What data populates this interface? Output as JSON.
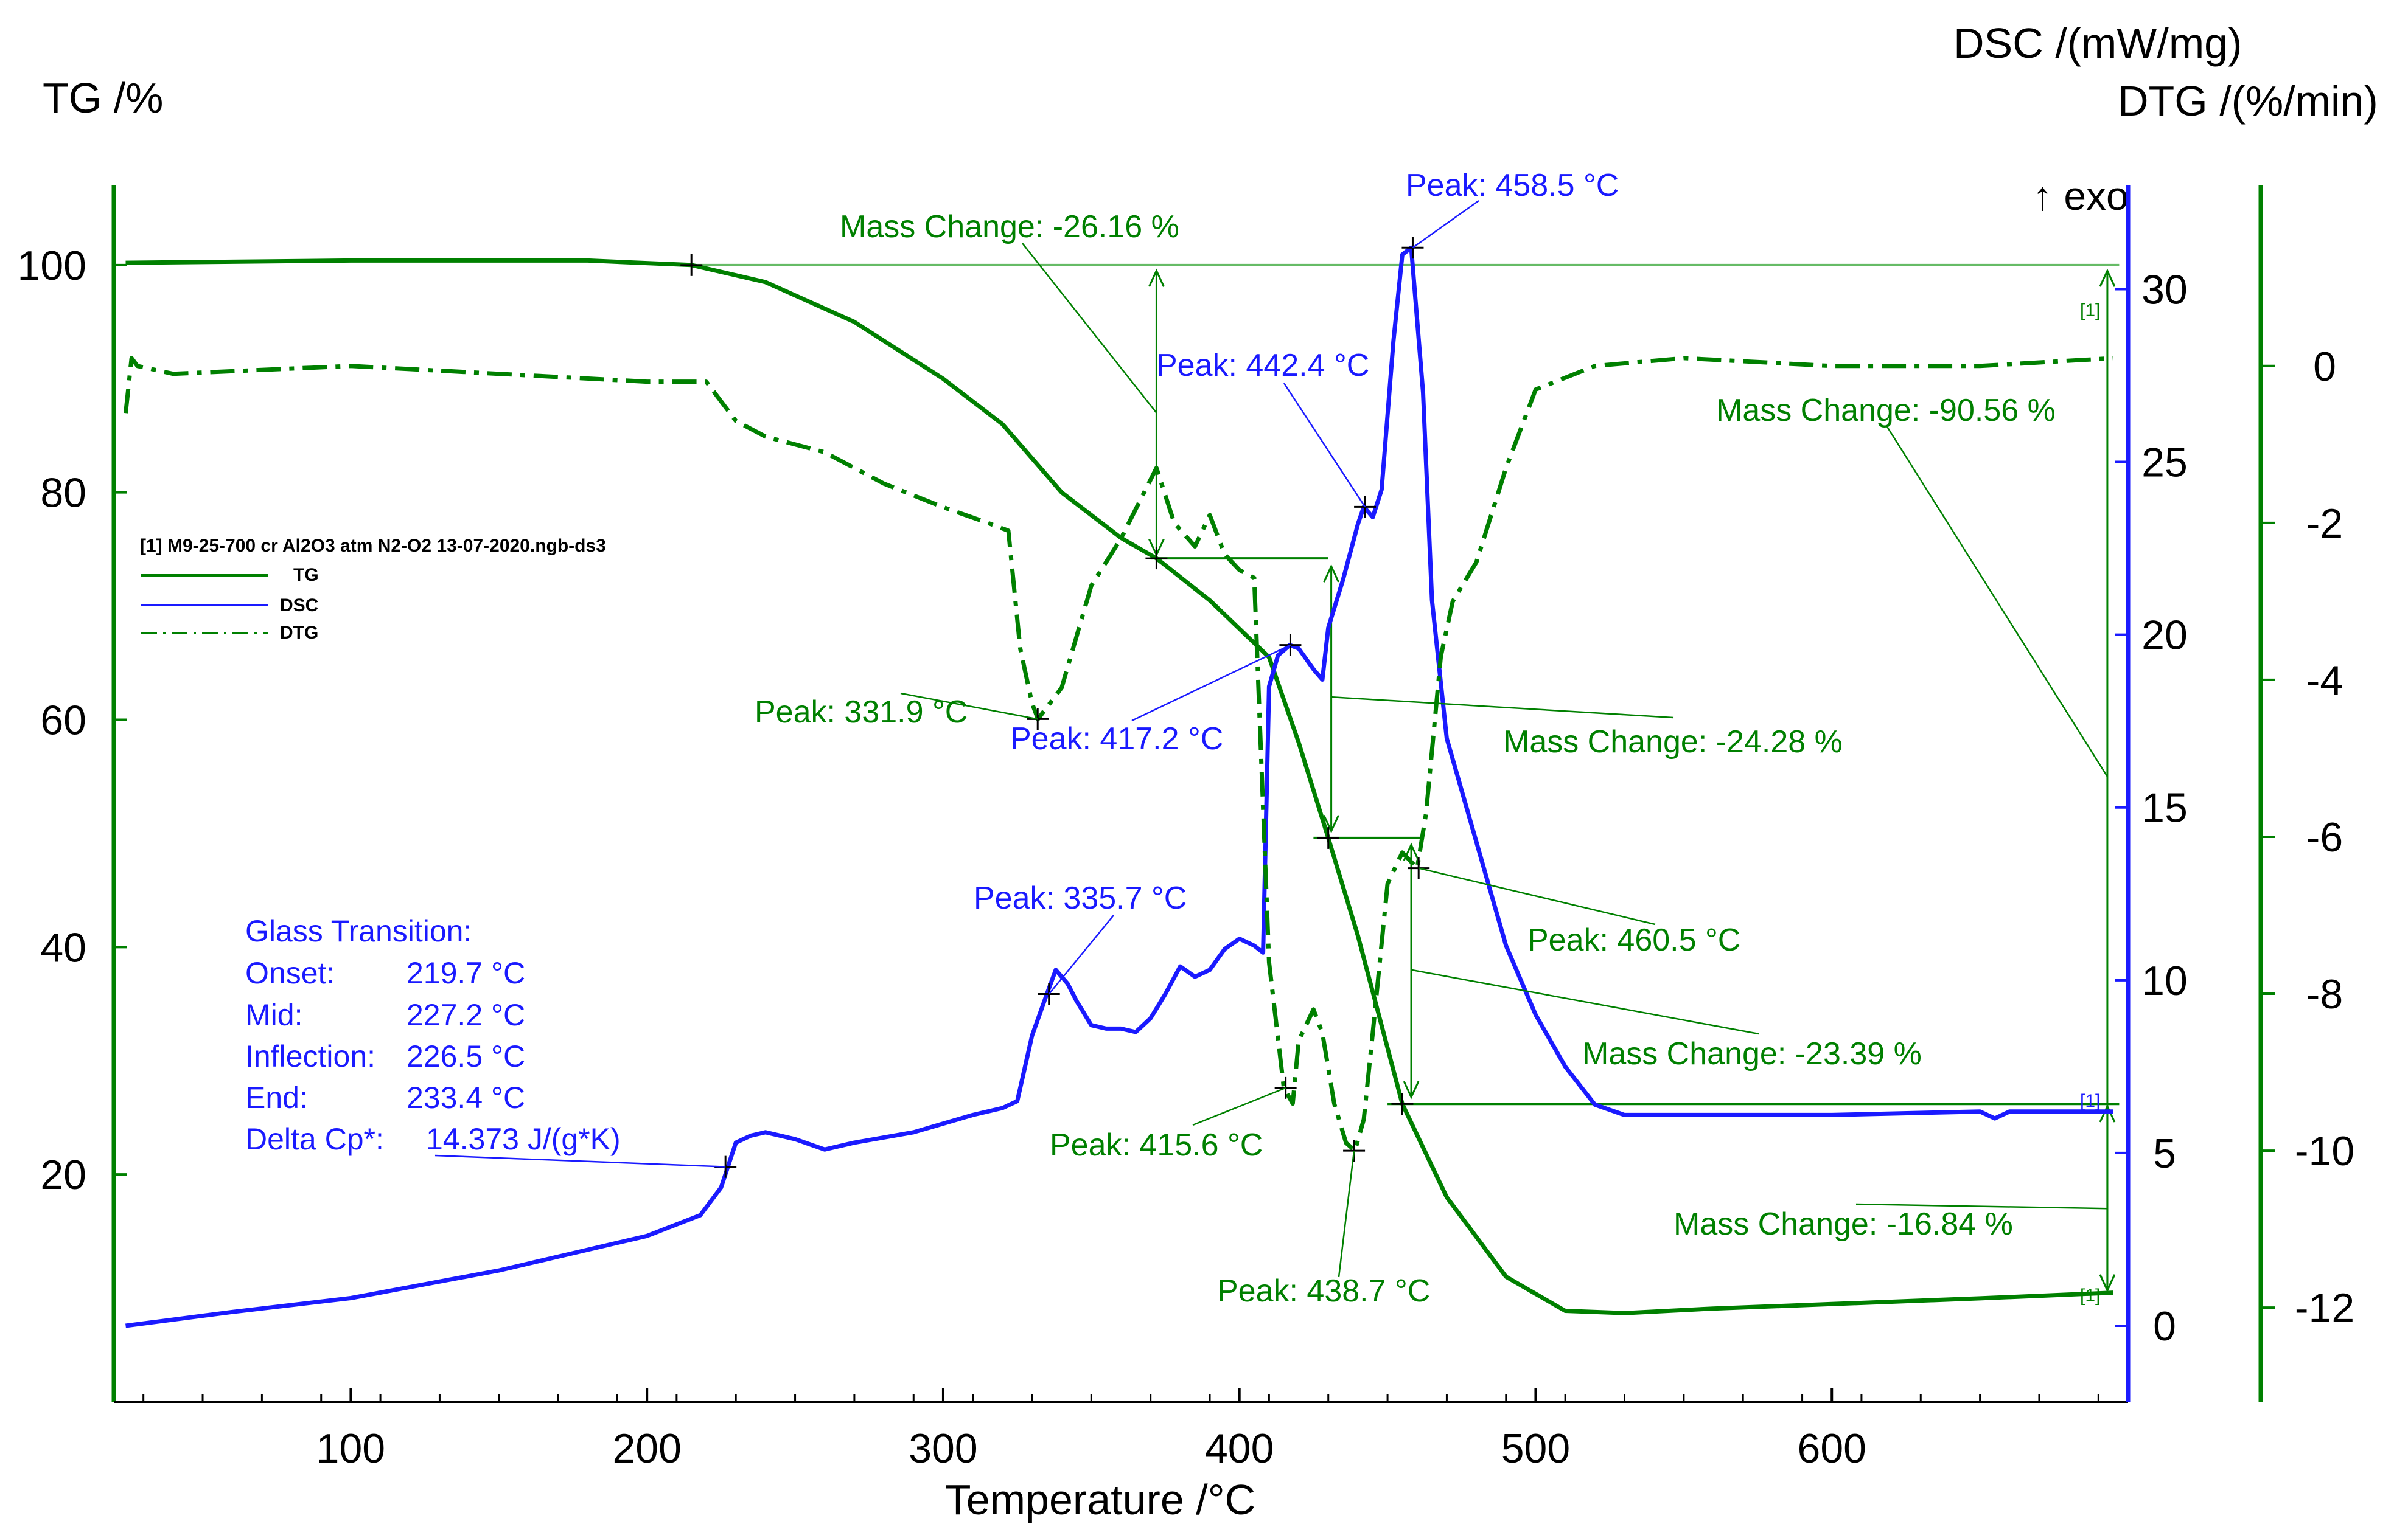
{
  "chart_data": {
    "type": "line",
    "title": "",
    "xlabel": "Temperature /°C",
    "xlim": [
      20,
      700
    ],
    "x_ticks": [
      100,
      200,
      300,
      400,
      500,
      600
    ],
    "y_axes": {
      "tg": {
        "label": "TG /%",
        "ylim": [
          0,
          107
        ],
        "ticks": [
          20,
          40,
          60,
          80,
          100
        ]
      },
      "dsc": {
        "label": "DSC /(mW/mg)",
        "ylim": [
          -2.2,
          33
        ],
        "ticks": [
          0,
          5,
          10,
          15,
          20,
          25,
          30
        ],
        "exo_label": "↑ exo"
      },
      "dtg": {
        "label": "DTG /(%/min)",
        "ylim": [
          -13.2,
          2.3
        ],
        "ticks": [
          0,
          -2,
          -4,
          -6,
          -8,
          -10,
          -12
        ]
      }
    },
    "legend": {
      "file": "[1] M9-25-700 cr Al2O3 atm N2-O2 13-07-2020.ngb-ds3",
      "entries": [
        "TG",
        "DSC",
        "DTG"
      ],
      "position": "left"
    },
    "series": [
      {
        "name": "TG",
        "axis": "tg",
        "color": "#008000",
        "style": "solid",
        "x": [
          24,
          100,
          180,
          215,
          240,
          270,
          300,
          320,
          340,
          360,
          372,
          390,
          410,
          420,
          430,
          440,
          455,
          470,
          490,
          510,
          530,
          560,
          600,
          650,
          695
        ],
        "y": [
          100.2,
          100.4,
          100.4,
          100,
          98.5,
          95,
          90,
          86,
          80,
          76,
          74.2,
          70.5,
          65.5,
          58,
          49.6,
          41,
          26.2,
          18,
          11,
          8,
          7.8,
          8.2,
          8.6,
          9.1,
          9.6
        ]
      },
      {
        "name": "DSC",
        "axis": "dsc",
        "color": "#1a1aff",
        "style": "solid",
        "x": [
          24,
          60,
          100,
          150,
          200,
          218,
          225,
          230,
          235,
          240,
          250,
          260,
          270,
          290,
          310,
          320,
          325,
          330,
          335,
          338,
          342,
          345,
          350,
          355,
          360,
          365,
          370,
          375,
          380,
          385,
          390,
          395,
          400,
          405,
          408,
          410,
          413,
          417,
          420,
          425,
          428,
          430,
          435,
          440,
          442,
          445,
          448,
          452,
          455,
          458,
          462,
          465,
          470,
          480,
          490,
          500,
          510,
          520,
          530,
          540,
          560,
          600,
          650,
          655,
          660,
          695
        ],
        "y": [
          0,
          0.4,
          0.8,
          1.6,
          2.6,
          3.2,
          4,
          5.3,
          5.5,
          5.6,
          5.4,
          5.1,
          5.3,
          5.6,
          6.1,
          6.3,
          6.5,
          8.4,
          9.6,
          10.3,
          9.9,
          9.4,
          8.7,
          8.6,
          8.6,
          8.5,
          8.9,
          9.6,
          10.4,
          10.1,
          10.3,
          10.9,
          11.2,
          11.0,
          10.8,
          18.5,
          19.4,
          19.7,
          19.6,
          19.0,
          18.7,
          20.2,
          21.6,
          23.2,
          23.7,
          23.4,
          24.2,
          28.5,
          31.0,
          31.2,
          27.0,
          21.0,
          17.0,
          14.0,
          11.0,
          9.0,
          7.5,
          6.4,
          6.1,
          6.1,
          6.1,
          6.1,
          6.2,
          6.0,
          6.2,
          6.2
        ]
      },
      {
        "name": "DTG",
        "axis": "dtg",
        "color": "#008000",
        "style": "dashdot",
        "x": [
          24,
          26,
          28,
          40,
          100,
          150,
          200,
          220,
          230,
          240,
          260,
          280,
          300,
          315,
          322,
          326,
          330,
          332,
          340,
          350,
          360,
          372,
          378,
          385,
          390,
          395,
          400,
          405,
          410,
          415,
          418,
          420,
          425,
          428,
          432,
          436,
          439,
          442,
          445,
          450,
          455,
          460,
          463,
          468,
          472,
          480,
          490,
          500,
          520,
          550,
          600,
          650,
          695
        ],
        "y": [
          -0.6,
          0.1,
          0.0,
          -0.1,
          0.0,
          -0.1,
          -0.2,
          -0.2,
          -0.7,
          -0.9,
          -1.1,
          -1.5,
          -1.8,
          -2.0,
          -2.1,
          -3.6,
          -4.3,
          -4.5,
          -4.1,
          -2.8,
          -2.2,
          -1.3,
          -2.0,
          -2.3,
          -1.9,
          -2.4,
          -2.6,
          -2.7,
          -7.6,
          -9.2,
          -9.4,
          -8.6,
          -8.2,
          -8.5,
          -9.4,
          -9.9,
          -10.0,
          -9.6,
          -8.5,
          -6.6,
          -6.2,
          -6.4,
          -5.7,
          -3.7,
          -3.0,
          -2.5,
          -1.3,
          -0.3,
          0.0,
          0.1,
          0.0,
          0.0,
          0.1
        ]
      }
    ],
    "annotations": [
      {
        "text": "Mass Change: -26.16 %",
        "color": "#008000"
      },
      {
        "text": "Mass Change: -90.56 %",
        "color": "#008000"
      },
      {
        "text": "Mass Change: -24.28 %",
        "color": "#008000"
      },
      {
        "text": "Mass Change: -23.39 %",
        "color": "#008000"
      },
      {
        "text": "Mass Change: -16.84 %",
        "color": "#008000"
      },
      {
        "text": "Peak: 458.5 °C",
        "color": "#1a1aff"
      },
      {
        "text": "Peak: 442.4 °C",
        "color": "#1a1aff"
      },
      {
        "text": "Peak: 417.2 °C",
        "color": "#1a1aff"
      },
      {
        "text": "Peak: 335.7 °C",
        "color": "#1a1aff"
      },
      {
        "text": "Peak: 331.9 °C",
        "color": "#008000"
      },
      {
        "text": "Peak: 460.5 °C",
        "color": "#008000"
      },
      {
        "text": "Peak: 415.6 °C",
        "color": "#008000"
      },
      {
        "text": "Peak: 438.7 °C",
        "color": "#008000"
      }
    ],
    "glass_transition": {
      "title": "Glass Transition:",
      "rows": [
        {
          "label": "Onset:",
          "value": "219.7 °C"
        },
        {
          "label": "Mid:",
          "value": "227.2 °C"
        },
        {
          "label": "Inflection:",
          "value": "226.5 °C"
        },
        {
          "label": "End:",
          "value": "233.4 °C"
        },
        {
          "label": "Delta Cp*:",
          "value": "14.373 J/(g*K)"
        }
      ]
    },
    "end_markers": [
      "[1]",
      "[1]",
      "[1]"
    ]
  },
  "colors": {
    "green": "#008000",
    "blue": "#1a1aff",
    "ref_line": "#66bb66"
  }
}
